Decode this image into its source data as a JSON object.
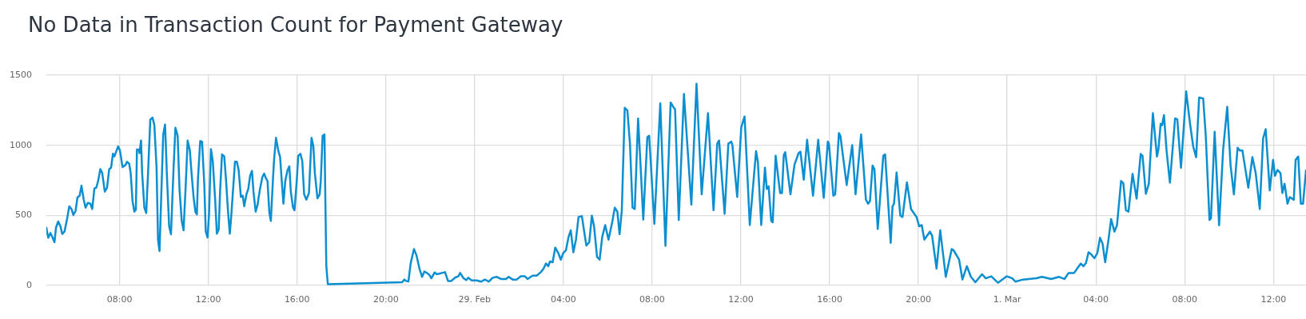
{
  "chart_data": {
    "type": "line",
    "title": "No Data in Transaction Count for Payment Gateway",
    "xlim": [
      "--02-28T04:42",
      "--03-01T13:28"
    ],
    "ylim": [
      0,
      1500
    ],
    "yticks": [
      0,
      500,
      1000,
      1500
    ],
    "xticks": [
      {
        "value": "--02-28T08:00",
        "label": "08:00"
      },
      {
        "value": "--02-28T12:00",
        "label": "12:00"
      },
      {
        "value": "--02-28T16:00",
        "label": "16:00"
      },
      {
        "value": "--02-28T20:00",
        "label": "20:00"
      },
      {
        "value": "--02-29T00:00",
        "label": "29. Feb"
      },
      {
        "value": "--02-29T04:00",
        "label": "04:00"
      },
      {
        "value": "--02-29T08:00",
        "label": "08:00"
      },
      {
        "value": "--02-29T12:00",
        "label": "12:00"
      },
      {
        "value": "--02-29T16:00",
        "label": "16:00"
      },
      {
        "value": "--02-29T20:00",
        "label": "20:00"
      },
      {
        "value": "--03-01T00:00",
        "label": "1. Mar"
      },
      {
        "value": "--03-01T04:00",
        "label": "04:00"
      },
      {
        "value": "--03-01T08:00",
        "label": "08:00"
      },
      {
        "value": "--03-01T12:00",
        "label": "12:00"
      }
    ],
    "grid": true,
    "marker": "none",
    "line_style": "solid",
    "x": [
      "--02-28T04:42",
      "--02-28T04:47",
      "--02-28T04:53",
      "--02-28T04:58",
      "--02-28T05:04",
      "--02-28T05:08",
      "--02-28T05:14",
      "--02-28T05:20",
      "--02-28T05:25",
      "--02-28T05:31",
      "--02-28T05:37",
      "--02-28T05:44",
      "--02-28T05:50",
      "--02-28T05:55",
      "--02-28T06:01",
      "--02-28T06:06",
      "--02-28T06:12",
      "--02-28T06:17",
      "--02-28T06:23",
      "--02-28T06:28",
      "--02-28T06:34",
      "--02-28T06:41",
      "--02-28T06:46",
      "--02-28T06:52",
      "--02-28T06:57",
      "--02-28T07:02",
      "--02-28T07:08",
      "--02-28T07:13",
      "--02-28T07:20",
      "--02-28T07:26",
      "--02-28T07:32",
      "--02-28T07:37",
      "--02-28T07:42",
      "--02-28T07:46",
      "--02-28T07:52",
      "--02-28T07:56",
      "--02-28T08:01",
      "--02-28T08:08",
      "--02-28T08:16",
      "--02-28T08:20",
      "--02-28T08:26",
      "--02-28T08:30",
      "--02-28T08:35",
      "--02-28T08:40",
      "--02-28T08:44",
      "--02-28T08:47",
      "--02-28T08:52",
      "--02-28T08:54",
      "--02-28T08:58",
      "--02-28T09:01",
      "--02-28T09:07",
      "--02-28T09:12",
      "--02-28T09:17",
      "--02-28T09:23",
      "--02-28T09:29",
      "--02-28T09:34",
      "--02-28T09:40",
      "--02-28T09:44",
      "--02-28T09:48",
      "--02-28T09:53",
      "--02-28T09:58",
      "--02-28T10:03",
      "--02-28T10:08",
      "--02-28T10:14",
      "--02-28T10:19",
      "--02-28T10:26",
      "--02-28T10:31",
      "--02-28T10:37",
      "--02-28T10:42",
      "--02-28T10:48",
      "--02-28T10:53",
      "--02-28T10:59",
      "--02-28T11:04",
      "--02-28T11:10",
      "--02-28T11:14",
      "--02-28T11:20",
      "--02-28T11:25",
      "--02-28T11:29",
      "--02-28T11:32",
      "--02-28T11:38",
      "--02-28T11:43",
      "--02-28T11:49",
      "--02-28T11:53",
      "--02-28T11:58",
      "--02-28T12:02",
      "--02-28T12:07",
      "--02-28T12:12",
      "--02-28T12:18",
      "--02-28T12:23",
      "--02-28T12:28",
      "--02-28T12:32",
      "--02-28T12:37",
      "--02-28T12:43",
      "--02-28T12:48",
      "--02-28T12:53",
      "--02-28T12:58",
      "--02-28T13:02",
      "--02-28T13:08",
      "--02-28T13:12",
      "--02-28T13:17",
      "--02-28T13:22",
      "--02-28T13:28",
      "--02-28T13:33",
      "--02-28T13:37",
      "--02-28T13:43",
      "--02-28T13:48",
      "--02-28T13:53",
      "--02-28T13:58",
      "--02-28T14:02",
      "--02-28T14:08",
      "--02-28T14:13",
      "--02-28T14:19",
      "--02-28T14:26",
      "--02-28T14:31",
      "--02-28T14:35",
      "--02-28T14:40",
      "--02-28T14:45",
      "--02-28T14:49",
      "--02-28T14:55",
      "--02-28T14:58",
      "--02-28T15:03",
      "--02-28T15:09",
      "--02-28T15:14",
      "--02-28T15:18",
      "--02-28T15:23",
      "--02-28T15:28",
      "--02-28T15:34",
      "--02-28T15:39",
      "--02-28T15:43",
      "--02-28T15:49",
      "--02-28T15:53",
      "--02-28T15:59",
      "--02-28T16:03",
      "--02-28T16:09",
      "--02-28T16:14",
      "--02-28T16:19",
      "--02-28T16:25",
      "--02-28T16:32",
      "--02-28T16:35",
      "--02-28T16:39",
      "--02-28T16:44",
      "--02-28T16:48",
      "--02-28T16:55",
      "--02-28T17:01",
      "--02-28T17:04",
      "--02-28T17:09",
      "--02-28T17:14",
      "--02-28T17:17",
      "--02-28T17:19",
      "--02-28T17:23",
      "--02-28T20:44",
      "--02-28T20:50",
      "--02-28T20:55",
      "--02-28T21:01",
      "--02-28T21:07",
      "--02-28T21:16",
      "--02-28T21:23",
      "--02-28T21:31",
      "--02-28T21:38",
      "--02-28T21:44",
      "--02-28T21:51",
      "--02-28T21:58",
      "--02-28T22:03",
      "--02-28T22:12",
      "--02-28T22:17",
      "--02-28T22:25",
      "--02-28T22:32",
      "--02-28T22:40",
      "--02-28T22:48",
      "--02-28T22:57",
      "--02-28T23:08",
      "--02-28T23:16",
      "--02-28T23:21",
      "--02-28T23:30",
      "--02-28T23:37",
      "--02-28T23:43",
      "--02-28T23:52",
      "--02-29T00:06",
      "--02-29T00:17",
      "--02-29T00:28",
      "--02-29T00:38",
      "--02-29T00:49",
      "--02-29T01:00",
      "--02-29T01:11",
      "--02-29T01:25",
      "--02-29T01:32",
      "--02-29T01:43",
      "--02-29T01:54",
      "--02-29T02:05",
      "--02-29T02:16",
      "--02-29T02:23",
      "--02-29T02:37",
      "--02-29T02:48",
      "--02-29T02:59",
      "--02-29T03:06",
      "--02-29T03:13",
      "--02-29T03:19",
      "--02-29T03:24",
      "--02-29T03:31",
      "--02-29T03:38",
      "--02-29T03:46",
      "--02-29T03:53",
      "--02-29T04:00",
      "--02-29T04:07",
      "--02-29T04:14",
      "--02-29T04:20",
      "--02-29T04:27",
      "--02-29T04:34",
      "--02-29T04:41",
      "--02-29T04:50",
      "--02-29T05:02",
      "--02-29T05:10",
      "--02-29T05:17",
      "--02-29T05:23",
      "--02-29T05:31",
      "--02-29T05:38",
      "--02-29T05:45",
      "--02-29T05:53",
      "--02-29T06:02",
      "--02-29T06:12",
      "--02-29T06:19",
      "--02-29T06:26",
      "--02-29T06:32",
      "--02-29T06:38",
      "--02-29T06:46",
      "--02-29T06:53",
      "--02-29T07:00",
      "--02-29T07:07",
      "--02-29T07:13",
      "--02-29T07:22",
      "--02-29T07:29",
      "--02-29T07:36",
      "--02-29T07:47",
      "--02-29T07:52",
      "--02-29T08:06",
      "--02-29T08:22",
      "--02-29T08:36",
      "--02-29T08:50",
      "--02-29T08:59",
      "--02-29T09:02",
      "--02-29T09:12",
      "--02-29T09:26",
      "--02-29T09:46",
      "--02-29T10:00",
      "--02-29T10:14",
      "--02-29T10:31",
      "--02-29T10:46",
      "--02-29T10:56",
      "--02-29T11:01",
      "--02-29T11:16",
      "--02-29T11:26",
      "--02-29T11:34",
      "--02-29T11:37",
      "--02-29T11:50",
      "--02-29T12:01",
      "--02-29T12:10",
      "--02-29T12:24",
      "--02-29T12:41",
      "--02-29T12:46",
      "--02-29T12:55",
      "--02-29T13:05",
      "--02-29T13:10",
      "--02-29T13:15",
      "--02-29T13:22",
      "--02-29T13:26",
      "--02-29T13:34",
      "--02-29T13:46",
      "--02-29T13:51",
      "--02-29T13:56",
      "--02-29T14:00",
      "--02-29T14:14",
      "--02-29T14:25",
      "--02-29T14:36",
      "--02-29T14:41",
      "--02-29T14:50",
      "--02-29T14:59",
      "--02-29T15:15",
      "--02-29T15:29",
      "--02-29T15:44",
      "--02-29T15:55",
      "--02-29T15:58",
      "--02-29T16:10",
      "--02-29T16:15",
      "--02-29T16:25",
      "--02-29T16:29",
      "--02-29T16:46",
      "--02-29T17:01",
      "--02-29T17:10",
      "--02-29T17:25",
      "--02-29T17:38",
      "--02-29T17:44",
      "--02-29T17:49",
      "--02-29T17:56",
      "--02-29T18:01",
      "--02-29T18:10",
      "--02-29T18:25",
      "--02-29T18:30",
      "--02-29T18:45",
      "--02-29T18:50",
      "--02-29T18:54",
      "--02-29T19:01",
      "--02-29T19:11",
      "--02-29T19:17",
      "--02-29T19:29",
      "--02-29T19:40",
      "--02-29T19:55",
      "--02-29T20:02",
      "--02-29T20:09",
      "--02-29T20:16",
      "--02-29T20:31",
      "--02-29T20:37",
      "--02-29T20:49",
      "--02-29T20:59",
      "--02-29T21:14",
      "--02-29T21:30",
      "--02-29T21:35",
      "--02-29T21:50",
      "--02-29T21:59",
      "--02-29T22:11",
      "--02-29T22:22",
      "--02-29T22:34",
      "--02-29T22:52",
      "--02-29T23:02",
      "--02-29T23:17",
      "--02-29T23:35",
      "--02-29T23:59",
      "--03-01T00:14",
      "--03-01T00:22",
      "--03-01T00:43",
      "--03-01T01:19",
      "--03-01T01:34",
      "--03-01T01:59",
      "--03-01T02:20",
      "--03-01T02:35",
      "--03-01T02:46",
      "--03-01T03:01",
      "--03-01T03:11",
      "--03-01T03:19",
      "--03-01T03:26",
      "--03-01T03:33",
      "--03-01T03:40",
      "--03-01T03:47",
      "--03-01T03:56",
      "--03-01T04:04",
      "--03-01T04:11",
      "--03-01T04:18",
      "--03-01T04:25",
      "--03-01T04:34",
      "--03-01T04:41",
      "--03-01T04:50",
      "--03-01T04:57",
      "--03-01T05:08",
      "--03-01T05:14",
      "--03-01T05:21",
      "--03-01T05:28",
      "--03-01T05:39",
      "--03-01T05:50",
      "--03-01T06:01",
      "--03-01T06:06",
      "--03-01T06:15",
      "--03-01T06:23",
      "--03-01T06:34",
      "--03-01T06:45",
      "--03-01T06:49",
      "--03-01T06:55",
      "--03-01T06:59",
      "--03-01T07:04",
      "--03-01T07:11",
      "--03-01T07:20",
      "--03-01T07:34",
      "--03-01T07:40",
      "--03-01T07:50",
      "--03-01T08:04",
      "--03-01T08:14",
      "--03-01T08:23",
      "--03-01T08:31",
      "--03-01T08:39",
      "--03-01T08:50",
      "--03-01T08:57",
      "--03-01T09:07",
      "--03-01T09:11",
      "--03-01T09:21",
      "--03-01T09:33",
      "--03-01T09:44",
      "--03-01T09:55",
      "--03-01T10:04",
      "--03-01T10:13",
      "--03-01T10:23",
      "--03-01T10:29",
      "--03-01T10:36",
      "--03-01T10:52",
      "--03-01T11:03",
      "--03-01T11:12",
      "--03-01T11:23",
      "--03-01T11:32",
      "--03-01T11:39",
      "--03-01T11:50",
      "--03-01T11:59",
      "--03-01T12:04",
      "--03-01T12:11",
      "--03-01T12:19",
      "--03-01T12:24",
      "--03-01T12:30",
      "--03-01T12:38",
      "--03-01T12:44",
      "--03-01T12:55",
      "--03-01T13:00",
      "--03-01T13:07",
      "--03-01T13:14",
      "--03-01T13:20",
      "--03-01T13:28"
    ],
    "series": [
      {
        "color": "#0b8fd0",
        "values": [
          412,
          340,
          374,
          346,
          308,
          412,
          456,
          422,
          367,
          384,
          460,
          564,
          545,
          502,
          532,
          627,
          640,
          711,
          612,
          555,
          589,
          583,
          545,
          692,
          697,
          745,
          830,
          802,
          669,
          697,
          830,
          840,
          939,
          920,
          963,
          992,
          963,
          844,
          859,
          882,
          868,
          802,
          602,
          526,
          540,
          969,
          969,
          944,
          1034,
          802,
          555,
          517,
          802,
          1182,
          1197,
          1144,
          840,
          325,
          245,
          669,
          1077,
          1148,
          783,
          422,
          365,
          840,
          1125,
          1068,
          688,
          460,
          393,
          726,
          1034,
          963,
          821,
          631,
          526,
          507,
          764,
          1030,
          1026,
          726,
          384,
          342,
          517,
          973,
          887,
          631,
          369,
          399,
          688,
          935,
          920,
          745,
          536,
          369,
          498,
          726,
          882,
          882,
          821,
          631,
          640,
          564,
          650,
          688,
          783,
          817,
          669,
          526,
          574,
          678,
          773,
          798,
          768,
          745,
          517,
          460,
          773,
          906,
          1053,
          963,
          916,
          764,
          583,
          745,
          821,
          849,
          669,
          555,
          536,
          745,
          925,
          939,
          887,
          650,
          612,
          659,
          830,
          1053,
          992,
          802,
          621,
          650,
          745,
          1068,
          1077,
          498,
          137,
          9,
          23,
          42,
          32,
          28,
          156,
          260,
          213,
          118,
          61,
          99,
          89,
          74,
          51,
          93,
          80,
          84,
          89,
          95,
          32,
          32,
          57,
          65,
          89,
          51,
          38,
          55,
          36,
          36,
          27,
          42,
          27,
          55,
          61,
          46,
          46,
          61,
          42,
          42,
          65,
          65,
          46,
          70,
          70,
          95,
          118,
          156,
          137,
          171,
          165,
          270,
          232,
          184,
          232,
          251,
          346,
          393,
          236,
          327,
          488,
          494,
          285,
          308,
          498,
          422,
          203,
          184,
          346,
          431,
          327,
          450,
          555,
          526,
          365,
          536,
          1267,
          1248,
          1011,
          555,
          545,
          1191,
          840,
          469,
          1058,
          1068,
          439,
          1299,
          283,
          1305,
          1265,
          1258,
          467,
          1366,
          576,
          1438,
          650,
          1229,
          536,
          1011,
          1034,
          511,
          1011,
          1026,
          1001,
          631,
          1129,
          1205,
          431,
          958,
          878,
          431,
          840,
          688,
          707,
          460,
          450,
          925,
          659,
          659,
          931,
          950,
          650,
          862,
          944,
          954,
          754,
          1039,
          640,
          1039,
          625,
          1026,
          1011,
          640,
          650,
          1087,
          1068,
          716,
          1001,
          650,
          1077,
          612,
          583,
          602,
          855,
          830,
          403,
          925,
          935,
          304,
          564,
          583,
          806,
          498,
          488,
          735,
          545,
          488,
          422,
          431,
          327,
          384,
          355,
          120,
          393,
          61,
          260,
          251,
          184,
          42,
          137,
          61,
          23,
          80,
          51,
          65,
          19,
          65,
          51,
          27,
          42,
          51,
          61,
          46,
          61,
          46,
          89,
          89,
          127,
          156,
          137,
          160,
          237,
          222,
          194,
          232,
          340,
          298,
          165,
          327,
          473,
          384,
          431,
          745,
          729,
          536,
          526,
          796,
          619,
          938,
          925,
          653,
          725,
          1229,
          919,
          972,
          1153,
          1143,
          1215,
          961,
          733,
          1191,
          1185,
          839,
          1384,
          1162,
          991,
          915,
          1341,
          1333,
          1067,
          467,
          478,
          1096,
          429,
          972,
          1274,
          858,
          649,
          982,
          963,
          963,
          697,
          915,
          801,
          545,
          1048,
          1115,
          678,
          896,
          782,
          824,
          801,
          659,
          725,
          583,
          630,
          611,
          896,
          919,
          583,
          583,
          820
        ]
      }
    ]
  }
}
